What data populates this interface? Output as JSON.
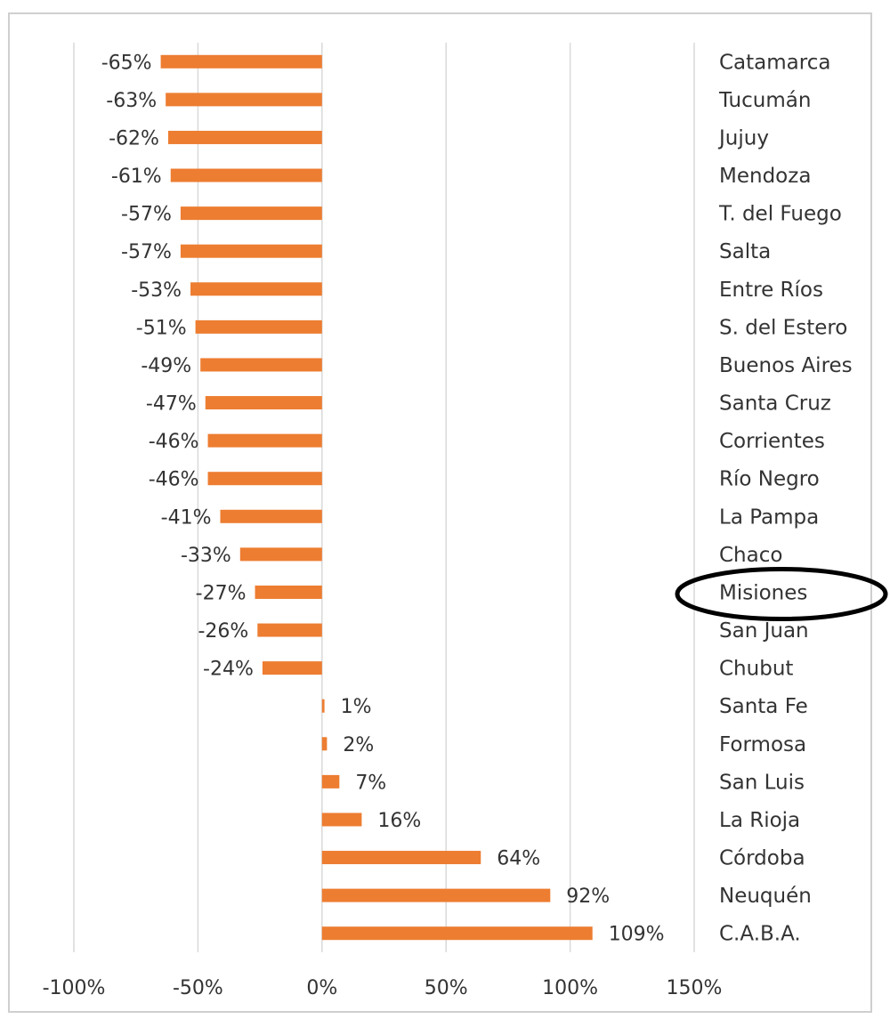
{
  "chart_data": {
    "type": "bar",
    "orientation": "horizontal",
    "categories": [
      "Catamarca",
      "Tucumán",
      "Jujuy",
      "Mendoza",
      "T. del Fuego",
      "Salta",
      "Entre Ríos",
      "S. del Estero",
      "Buenos Aires",
      "Santa Cruz",
      "Corrientes",
      "Río Negro",
      "La Pampa",
      "Chaco",
      "Misiones",
      "San Juan",
      "Chubut",
      "Santa Fe",
      "Formosa",
      "San Luis",
      "La Rioja",
      "Córdoba",
      "Neuquén",
      "C.A.B.A."
    ],
    "values": [
      -65,
      -63,
      -62,
      -61,
      -57,
      -57,
      -53,
      -51,
      -49,
      -47,
      -46,
      -46,
      -41,
      -33,
      -27,
      -26,
      -24,
      1,
      2,
      7,
      16,
      64,
      92,
      109
    ],
    "data_labels": [
      "-65%",
      "-63%",
      "-62%",
      "-61%",
      "-57%",
      "-57%",
      "-53%",
      "-51%",
      "-49%",
      "-47%",
      "-46%",
      "-46%",
      "-41%",
      "-33%",
      "-27%",
      "-26%",
      "-24%",
      "1%",
      "2%",
      "7%",
      "16%",
      "64%",
      "92%",
      "109%"
    ],
    "xlim": [
      -100,
      150
    ],
    "x_ticks": [
      -100,
      -50,
      0,
      50,
      100,
      150
    ],
    "x_tick_labels": [
      "-100%",
      "-50%",
      "0%",
      "50%",
      "100%",
      "150%"
    ],
    "grid": true,
    "highlighted_category": "Misiones",
    "title": "",
    "xlabel": "",
    "ylabel": "",
    "colors": {
      "bar": "#ED7D31",
      "grid": "#D9D9D9",
      "highlight_ring": "#000000"
    }
  }
}
